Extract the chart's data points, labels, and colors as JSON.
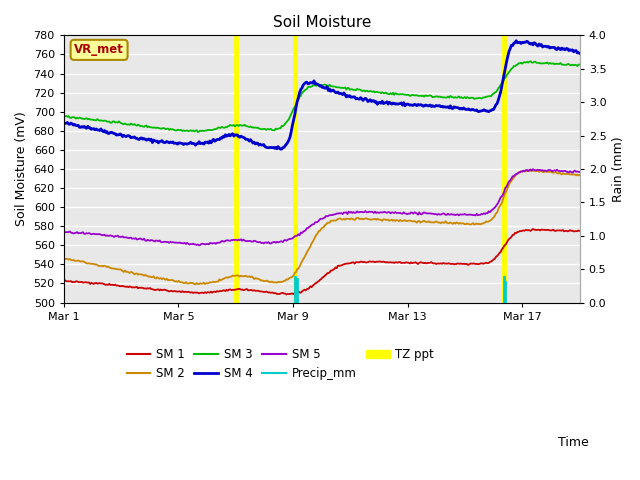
{
  "title": "Soil Moisture",
  "xlabel": "Time",
  "ylabel_left": "Soil Moisture (mV)",
  "ylabel_right": "Rain (mm)",
  "ylim_left": [
    500,
    780
  ],
  "ylim_right": [
    0.0,
    4.0
  ],
  "yticks_left": [
    500,
    520,
    540,
    560,
    580,
    600,
    620,
    640,
    660,
    680,
    700,
    720,
    740,
    760,
    780
  ],
  "yticks_right": [
    0.0,
    0.5,
    1.0,
    1.5,
    2.0,
    2.5,
    3.0,
    3.5,
    4.0
  ],
  "xtick_labels": [
    "Mar 1",
    "Mar 5",
    "Mar 9",
    "Mar 13",
    "Mar 17"
  ],
  "xtick_positions": [
    0,
    4,
    8,
    12,
    16
  ],
  "xlim": [
    0,
    18
  ],
  "figure_bg": "#ffffff",
  "plot_bg_color": "#e8e8e8",
  "grid_color": "white",
  "colors": {
    "SM1": "#cc0000",
    "SM2": "#cc8800",
    "SM3": "#00bb00",
    "SM4": "#0000cc",
    "SM5": "#9900cc",
    "Precip": "#00cccc",
    "TZ_ppt": "#ffff00"
  },
  "rain_events_tz": [
    6.0,
    8.05,
    15.35
  ],
  "rain_events_precip": [
    [
      8.07,
      0.38
    ],
    [
      8.12,
      0.35
    ],
    [
      15.37,
      0.38
    ],
    [
      15.41,
      0.3
    ]
  ],
  "vr_met_box": {
    "text": "VR_met",
    "text_color": "#aa0000",
    "bg_color": "#ffff99",
    "border_color": "#aa8800"
  },
  "n_days": 18,
  "legend_items": [
    [
      "SM 1",
      "SM1"
    ],
    [
      "SM 2",
      "SM2"
    ],
    [
      "SM 3",
      "SM3"
    ],
    [
      "SM 4",
      "SM4"
    ],
    [
      "SM 5",
      "SM5"
    ],
    [
      "Precip_mm",
      "Precip"
    ],
    [
      "TZ ppt",
      "TZ_ppt"
    ]
  ]
}
